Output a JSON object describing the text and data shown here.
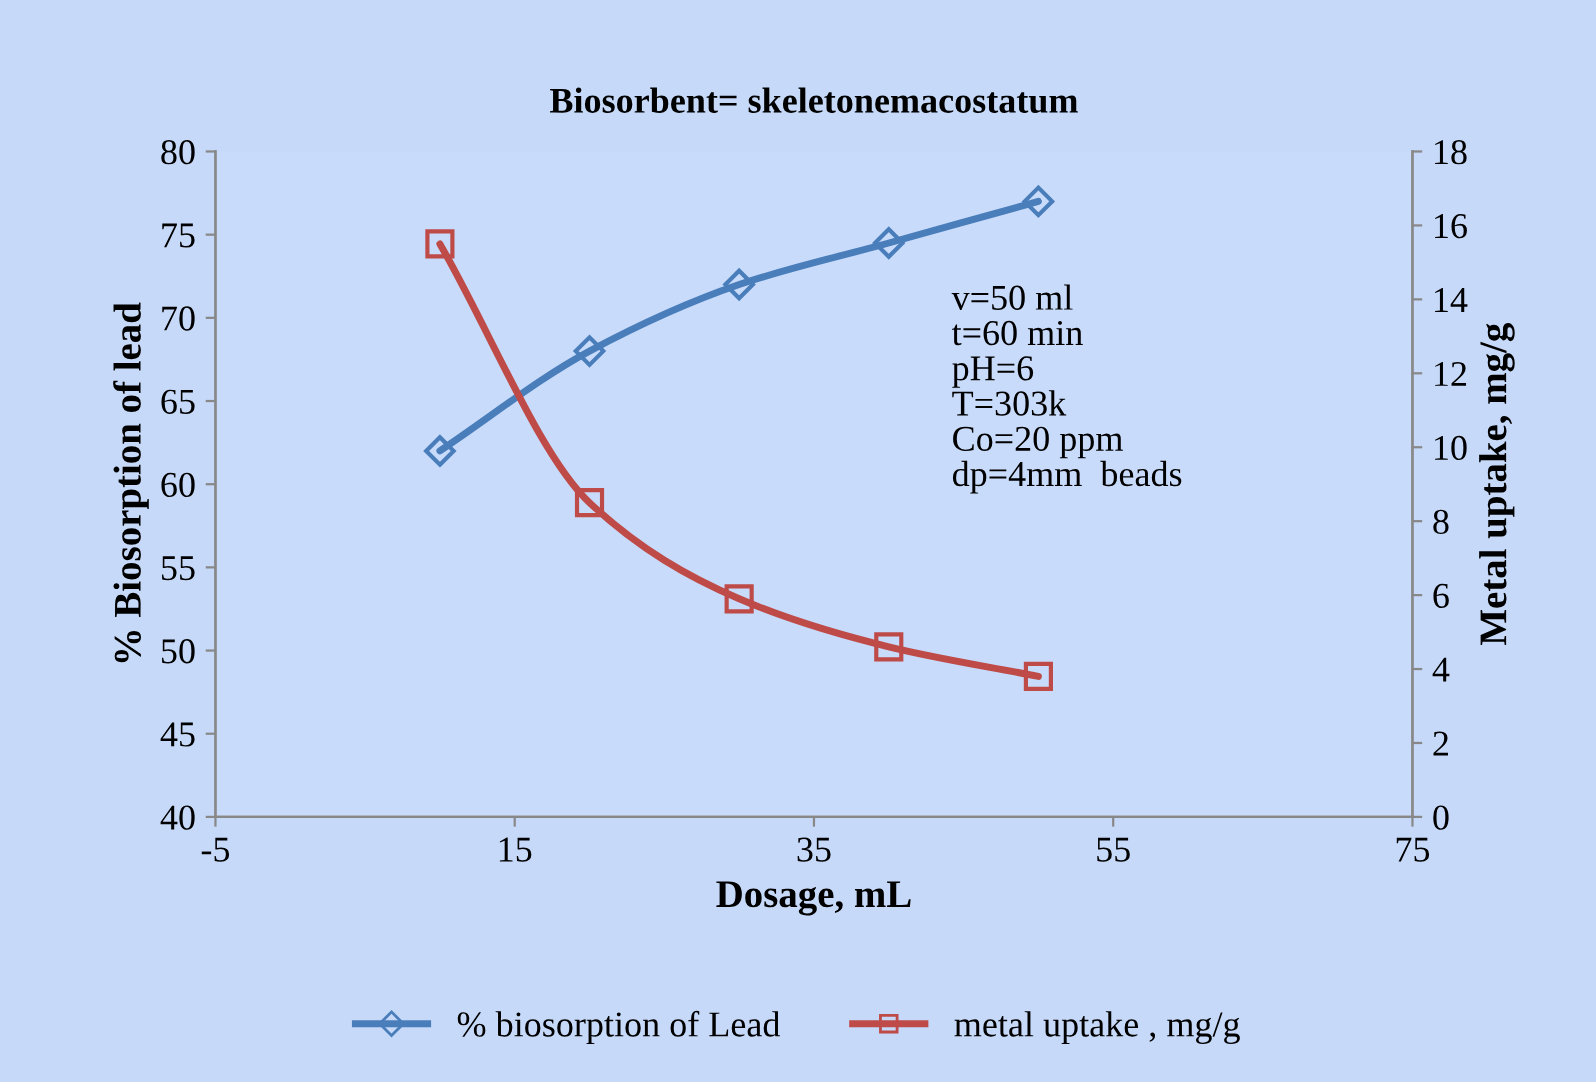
{
  "chart_data": {
    "type": "line",
    "title": "Biosorbent= skeletonemacostatum",
    "xlabel": "Dosage, mL",
    "ylabel": "% Biosorption of lead",
    "y2label": "Metal uptake, mg/g",
    "x": [
      10,
      20,
      30,
      40,
      50
    ],
    "series": [
      {
        "name": "% biosorption of Lead",
        "color": "#4a7ebb",
        "marker": "diamond",
        "values": [
          62,
          68,
          72,
          74.5,
          77
        ]
      },
      {
        "name": "metal uptake , mg/g",
        "color": "#be4b48",
        "marker": "square",
        "axis": "y2",
        "values": [
          15.5,
          8.5,
          5.9,
          4.6,
          3.8
        ]
      }
    ],
    "xlim": [
      -5,
      75
    ],
    "xticks": [
      -5,
      15,
      35,
      55,
      75
    ],
    "ylim": [
      40,
      80
    ],
    "yticks": [
      40,
      45,
      50,
      55,
      60,
      65,
      70,
      75,
      80
    ],
    "y2lim": [
      0,
      18
    ],
    "y2ticks": [
      0,
      2,
      4,
      6,
      8,
      10,
      12,
      14,
      16,
      18
    ],
    "grid": false,
    "legend": "bottom",
    "annotations": [
      {
        "text": "v=50 ml\nt=60 min\npH=6\nT=303k\nCo=20 ppm\ndp=4mm  beads"
      }
    ]
  }
}
